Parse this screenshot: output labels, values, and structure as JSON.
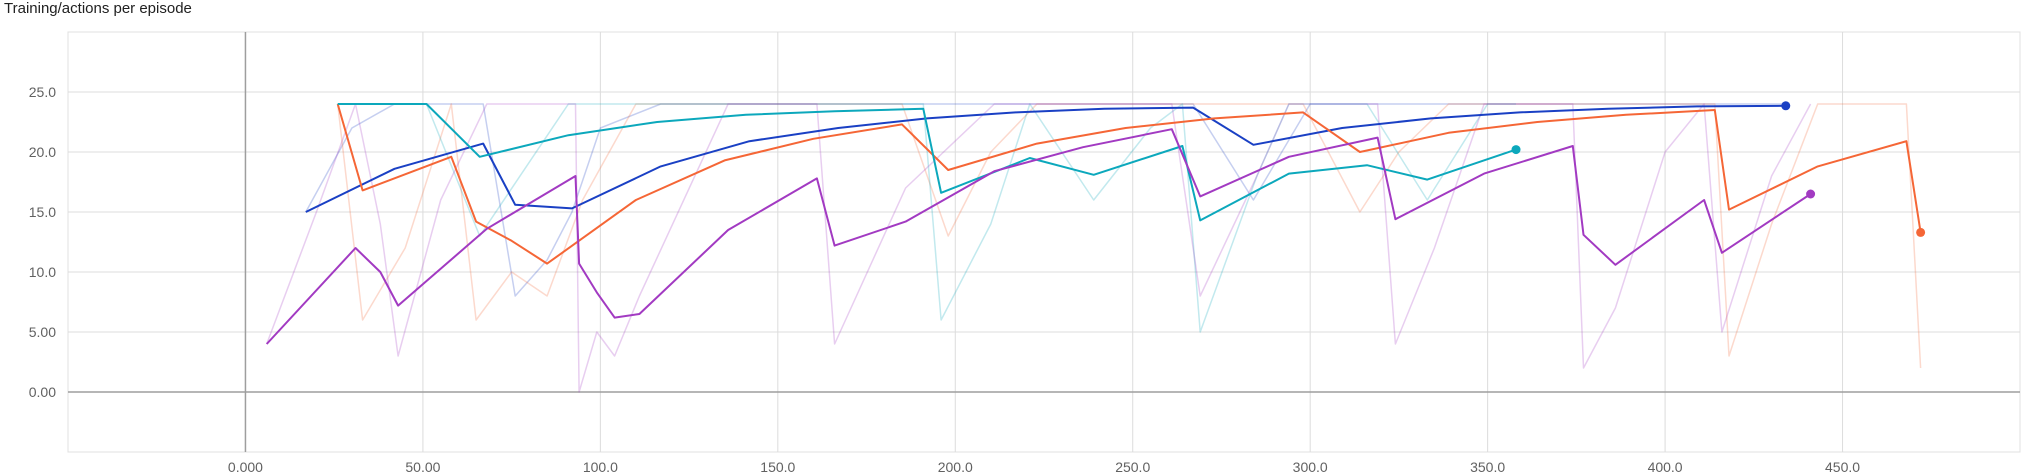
{
  "chart_data": {
    "type": "line",
    "title": "Training/actions per episode",
    "xlabel": "",
    "ylabel": "",
    "xlim": [
      -50,
      500
    ],
    "ylim": [
      -5,
      30
    ],
    "xticks": [
      0,
      50,
      100,
      150,
      200,
      250,
      300,
      350,
      400,
      450
    ],
    "xtick_labels": [
      "0.000",
      "50.00",
      "100.0",
      "150.0",
      "200.0",
      "250.0",
      "300.0",
      "350.0",
      "400.0",
      "450.0"
    ],
    "yticks": [
      0,
      5,
      10,
      15,
      20,
      25
    ],
    "ytick_labels": [
      "0.00",
      "5.00",
      "10.0",
      "15.0",
      "20.0",
      "25.0"
    ],
    "grid": true,
    "legend": "none",
    "series": [
      {
        "color": "#1a40c4",
        "smoothed": [
          [
            17,
            15
          ],
          [
            42,
            18.6
          ],
          [
            67,
            20.7
          ],
          [
            76,
            15.6
          ],
          [
            92,
            15.3
          ],
          [
            117,
            18.8
          ],
          [
            142,
            20.9
          ],
          [
            167,
            22
          ],
          [
            192,
            22.8
          ],
          [
            217,
            23.3
          ],
          [
            242,
            23.6
          ],
          [
            267,
            23.7
          ],
          [
            284,
            20.6
          ],
          [
            309,
            22
          ],
          [
            334,
            22.8
          ],
          [
            359,
            23.3
          ],
          [
            384,
            23.6
          ],
          [
            409,
            23.8
          ],
          [
            434,
            23.85
          ]
        ],
        "raw": [
          [
            17,
            15
          ],
          [
            30,
            22
          ],
          [
            42,
            24
          ],
          [
            55,
            24
          ],
          [
            67,
            24
          ],
          [
            76,
            8
          ],
          [
            85,
            11
          ],
          [
            92,
            15
          ],
          [
            100,
            22
          ],
          [
            117,
            24
          ],
          [
            142,
            24
          ],
          [
            167,
            24
          ],
          [
            192,
            24
          ],
          [
            217,
            24
          ],
          [
            242,
            24
          ],
          [
            267,
            24
          ],
          [
            284,
            16
          ],
          [
            300,
            24
          ],
          [
            334,
            24
          ],
          [
            359,
            24
          ],
          [
            384,
            24
          ],
          [
            409,
            24
          ],
          [
            434,
            24
          ]
        ]
      },
      {
        "color": "#f56636",
        "smoothed": [
          [
            26,
            24
          ],
          [
            33,
            16.8
          ],
          [
            58,
            19.6
          ],
          [
            65,
            14.2
          ],
          [
            75,
            12.6
          ],
          [
            85,
            10.7
          ],
          [
            110,
            16
          ],
          [
            135,
            19.3
          ],
          [
            160,
            21.1
          ],
          [
            185,
            22.3
          ],
          [
            198,
            18.5
          ],
          [
            223,
            20.7
          ],
          [
            248,
            22
          ],
          [
            273,
            22.8
          ],
          [
            298,
            23.3
          ],
          [
            314,
            20
          ],
          [
            339,
            21.6
          ],
          [
            364,
            22.5
          ],
          [
            389,
            23.1
          ],
          [
            414,
            23.5
          ],
          [
            418,
            15.2
          ],
          [
            443,
            18.8
          ],
          [
            468,
            20.9
          ],
          [
            472,
            13.3
          ]
        ],
        "raw": [
          [
            26,
            24
          ],
          [
            33,
            6
          ],
          [
            45,
            12
          ],
          [
            58,
            24
          ],
          [
            65,
            6
          ],
          [
            75,
            10
          ],
          [
            85,
            8
          ],
          [
            95,
            16
          ],
          [
            110,
            24
          ],
          [
            135,
            24
          ],
          [
            160,
            24
          ],
          [
            185,
            24
          ],
          [
            198,
            13
          ],
          [
            210,
            20
          ],
          [
            223,
            24
          ],
          [
            248,
            24
          ],
          [
            273,
            24
          ],
          [
            298,
            24
          ],
          [
            314,
            15
          ],
          [
            325,
            20
          ],
          [
            339,
            24
          ],
          [
            364,
            24
          ],
          [
            389,
            24
          ],
          [
            414,
            24
          ],
          [
            418,
            3
          ],
          [
            430,
            14
          ],
          [
            443,
            24
          ],
          [
            468,
            24
          ],
          [
            472,
            2
          ]
        ]
      },
      {
        "color": "#0ca8bc",
        "smoothed": [
          [
            26,
            24
          ],
          [
            51,
            24
          ],
          [
            66,
            19.6
          ],
          [
            91,
            21.4
          ],
          [
            116,
            22.5
          ],
          [
            141,
            23.1
          ],
          [
            166,
            23.4
          ],
          [
            191,
            23.6
          ],
          [
            196,
            16.6
          ],
          [
            221,
            19.5
          ],
          [
            239,
            18.1
          ],
          [
            264,
            20.5
          ],
          [
            269,
            14.3
          ],
          [
            294,
            18.2
          ],
          [
            316,
            18.9
          ],
          [
            333,
            17.7
          ],
          [
            358,
            20.2
          ]
        ],
        "raw": [
          [
            26,
            24
          ],
          [
            51,
            24
          ],
          [
            66,
            13
          ],
          [
            91,
            24
          ],
          [
            116,
            24
          ],
          [
            141,
            24
          ],
          [
            166,
            24
          ],
          [
            191,
            24
          ],
          [
            196,
            6
          ],
          [
            210,
            14
          ],
          [
            221,
            24
          ],
          [
            239,
            16
          ],
          [
            255,
            22
          ],
          [
            264,
            24
          ],
          [
            269,
            5
          ],
          [
            285,
            18
          ],
          [
            294,
            24
          ],
          [
            316,
            24
          ],
          [
            333,
            16
          ],
          [
            350,
            24
          ],
          [
            358,
            24
          ]
        ]
      },
      {
        "color": "#a23ac2",
        "smoothed": [
          [
            6,
            4
          ],
          [
            31,
            12
          ],
          [
            38,
            10
          ],
          [
            43,
            7.2
          ],
          [
            68,
            13.6
          ],
          [
            93,
            18
          ],
          [
            94,
            10.7
          ],
          [
            99,
            8.3
          ],
          [
            104,
            6.2
          ],
          [
            111,
            6.5
          ],
          [
            136,
            13.5
          ],
          [
            161,
            17.8
          ],
          [
            166,
            12.2
          ],
          [
            186,
            14.2
          ],
          [
            211,
            18.4
          ],
          [
            236,
            20.4
          ],
          [
            261,
            21.9
          ],
          [
            269,
            16.3
          ],
          [
            294,
            19.6
          ],
          [
            319,
            21.2
          ],
          [
            324,
            14.4
          ],
          [
            349,
            18.2
          ],
          [
            374,
            20.5
          ],
          [
            377,
            13.1
          ],
          [
            386,
            10.6
          ],
          [
            411,
            16
          ],
          [
            416,
            11.6
          ],
          [
            441,
            16.5
          ]
        ],
        "raw": [
          [
            6,
            4
          ],
          [
            20,
            15
          ],
          [
            31,
            24
          ],
          [
            38,
            14
          ],
          [
            43,
            3
          ],
          [
            55,
            16
          ],
          [
            68,
            24
          ],
          [
            93,
            24
          ],
          [
            94,
            0
          ],
          [
            99,
            5
          ],
          [
            104,
            3
          ],
          [
            111,
            8
          ],
          [
            136,
            24
          ],
          [
            161,
            24
          ],
          [
            166,
            4
          ],
          [
            186,
            17
          ],
          [
            211,
            24
          ],
          [
            236,
            24
          ],
          [
            261,
            24
          ],
          [
            269,
            8
          ],
          [
            285,
            18
          ],
          [
            294,
            24
          ],
          [
            319,
            24
          ],
          [
            324,
            4
          ],
          [
            335,
            12
          ],
          [
            349,
            24
          ],
          [
            374,
            24
          ],
          [
            377,
            2
          ],
          [
            386,
            7
          ],
          [
            400,
            20
          ],
          [
            411,
            24
          ],
          [
            416,
            5
          ],
          [
            430,
            18
          ],
          [
            441,
            24
          ]
        ]
      }
    ]
  }
}
